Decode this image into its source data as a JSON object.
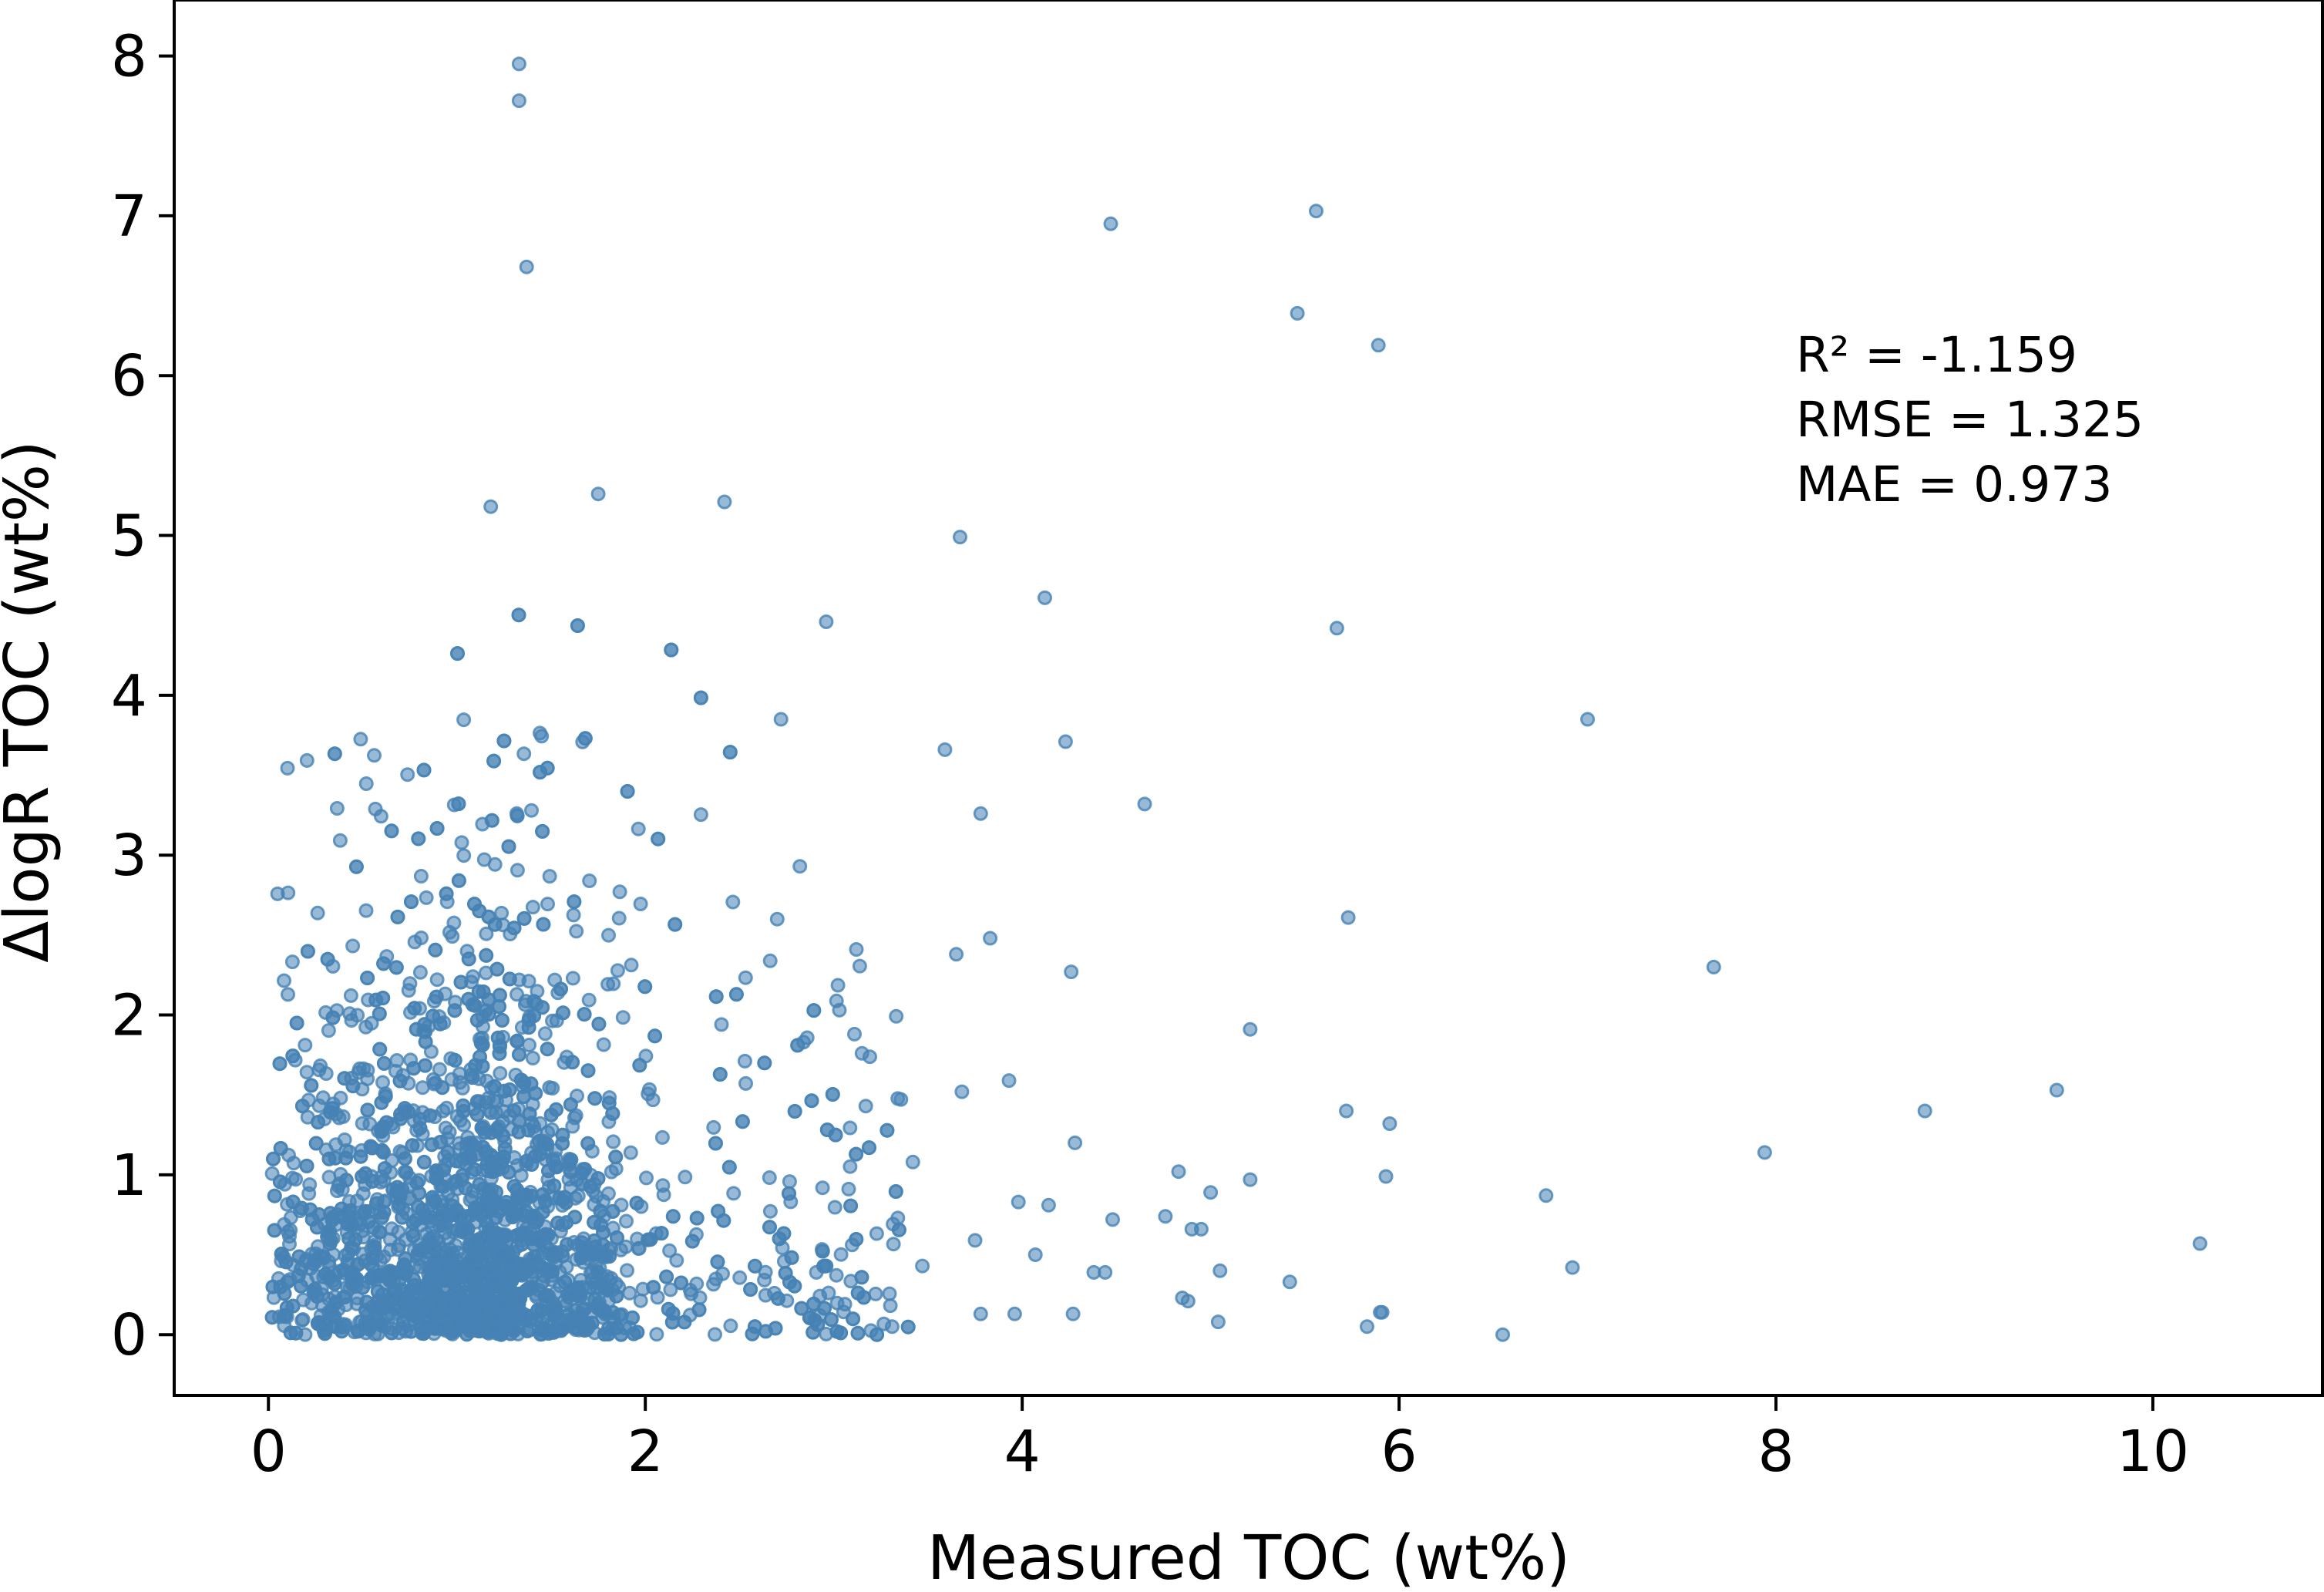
{
  "chart_data": {
    "type": "scatter",
    "xlabel": "Measured TOC (wt%)",
    "ylabel": "ΔlogR TOC (wt%)",
    "xlim": [
      -0.5,
      10.9
    ],
    "ylim": [
      -0.38,
      8.35
    ],
    "xticks": [
      0,
      2,
      4,
      6,
      8,
      10
    ],
    "yticks": [
      0,
      1,
      2,
      3,
      4,
      5,
      6,
      7,
      8
    ],
    "grid": false,
    "legend": "none",
    "marker_color": "#4682b4",
    "marker_opacity": 0.55,
    "annotations": [
      "R² = -1.159",
      "RMSE = 1.325",
      "MAE = 0.973"
    ],
    "outliers": [
      {
        "x": 1.33,
        "y": 7.95
      },
      {
        "x": 1.33,
        "y": 7.72
      },
      {
        "x": 1.37,
        "y": 6.68
      },
      {
        "x": 4.47,
        "y": 6.95
      },
      {
        "x": 5.56,
        "y": 7.03
      },
      {
        "x": 5.46,
        "y": 6.39
      },
      {
        "x": 5.89,
        "y": 6.19
      },
      {
        "x": 1.75,
        "y": 5.26
      },
      {
        "x": 1.18,
        "y": 5.18
      },
      {
        "x": 2.42,
        "y": 5.21
      },
      {
        "x": 3.67,
        "y": 4.99
      },
      {
        "x": 4.12,
        "y": 4.61
      },
      {
        "x": 5.67,
        "y": 4.42
      },
      {
        "x": 2.96,
        "y": 4.46
      },
      {
        "x": 2.72,
        "y": 3.85
      },
      {
        "x": 3.59,
        "y": 3.66
      },
      {
        "x": 4.23,
        "y": 3.71
      },
      {
        "x": 3.78,
        "y": 3.26
      },
      {
        "x": 4.65,
        "y": 3.32
      },
      {
        "x": 7.0,
        "y": 3.85
      },
      {
        "x": 5.73,
        "y": 2.61
      },
      {
        "x": 3.83,
        "y": 2.48
      },
      {
        "x": 3.65,
        "y": 2.38
      },
      {
        "x": 4.26,
        "y": 2.27
      },
      {
        "x": 7.67,
        "y": 2.3
      },
      {
        "x": 5.21,
        "y": 1.91
      },
      {
        "x": 3.68,
        "y": 1.52
      },
      {
        "x": 3.93,
        "y": 1.59
      },
      {
        "x": 5.72,
        "y": 1.4
      },
      {
        "x": 5.95,
        "y": 1.32
      },
      {
        "x": 8.79,
        "y": 1.4
      },
      {
        "x": 9.49,
        "y": 1.53
      },
      {
        "x": 7.94,
        "y": 1.14
      },
      {
        "x": 4.28,
        "y": 1.2
      },
      {
        "x": 4.83,
        "y": 1.02
      },
      {
        "x": 5.0,
        "y": 0.89
      },
      {
        "x": 5.21,
        "y": 0.97
      },
      {
        "x": 5.93,
        "y": 0.99
      },
      {
        "x": 6.78,
        "y": 0.87
      },
      {
        "x": 4.14,
        "y": 0.81
      },
      {
        "x": 3.98,
        "y": 0.83
      },
      {
        "x": 4.48,
        "y": 0.72
      },
      {
        "x": 4.76,
        "y": 0.74
      },
      {
        "x": 4.9,
        "y": 0.66
      },
      {
        "x": 4.95,
        "y": 0.66
      },
      {
        "x": 3.75,
        "y": 0.59
      },
      {
        "x": 4.07,
        "y": 0.5
      },
      {
        "x": 4.38,
        "y": 0.39
      },
      {
        "x": 4.44,
        "y": 0.39
      },
      {
        "x": 5.05,
        "y": 0.4
      },
      {
        "x": 6.92,
        "y": 0.42
      },
      {
        "x": 10.25,
        "y": 0.57
      },
      {
        "x": 4.85,
        "y": 0.23
      },
      {
        "x": 4.88,
        "y": 0.21
      },
      {
        "x": 5.42,
        "y": 0.33
      },
      {
        "x": 3.96,
        "y": 0.13
      },
      {
        "x": 4.27,
        "y": 0.13
      },
      {
        "x": 5.04,
        "y": 0.08
      },
      {
        "x": 5.83,
        "y": 0.05
      },
      {
        "x": 5.9,
        "y": 0.14
      },
      {
        "x": 5.91,
        "y": 0.14
      },
      {
        "x": 6.55,
        "y": 0.0
      },
      {
        "x": 3.78,
        "y": 0.13
      },
      {
        "x": 3.12,
        "y": 2.41
      },
      {
        "x": 2.82,
        "y": 2.93
      },
      {
        "x": 2.7,
        "y": 2.6
      },
      {
        "x": 3.03,
        "y": 2.03
      },
      {
        "x": 3.11,
        "y": 1.88
      },
      {
        "x": 3.15,
        "y": 1.76
      },
      {
        "x": 2.84,
        "y": 1.83
      },
      {
        "x": 3.17,
        "y": 1.43
      },
      {
        "x": 3.42,
        "y": 1.08
      },
      {
        "x": 3.34,
        "y": 0.73
      },
      {
        "x": 3.47,
        "y": 0.43
      },
      {
        "x": 3.31,
        "y": 0.05
      }
    ],
    "dense_cloud": {
      "description_free": true,
      "count": 2600,
      "x_center": 1.15,
      "x_spread": 0.55,
      "y_decay": 0.85,
      "x_min": 0.02,
      "x_max": 3.4,
      "y_max": 4.6
    }
  }
}
